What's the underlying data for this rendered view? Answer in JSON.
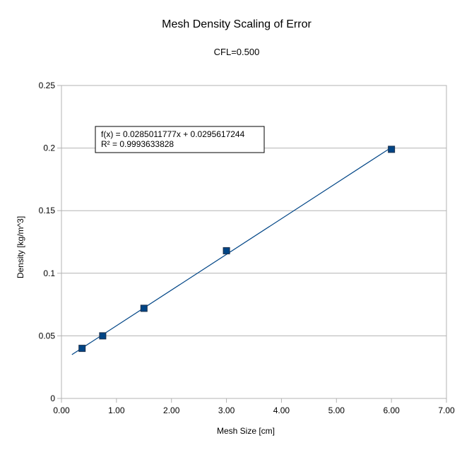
{
  "chart_data": {
    "type": "scatter",
    "title": "Mesh Density Scaling of Error",
    "subtitle": "CFL=0.500",
    "xlabel": "Mesh Size [cm]",
    "ylabel": "Density [kg/m^3]",
    "xlim": [
      0,
      7
    ],
    "ylim": [
      0,
      0.25
    ],
    "x_ticks": [
      "0.00",
      "1.00",
      "2.00",
      "3.00",
      "4.00",
      "5.00",
      "6.00",
      "7.00"
    ],
    "y_ticks": [
      "0",
      "0.05",
      "0.1",
      "0.15",
      "0.2",
      "0.25"
    ],
    "grid": "horizontal",
    "series": [
      {
        "x": [
          0.375,
          0.75,
          1.5,
          3.0,
          6.0
        ],
        "y": [
          0.04,
          0.05,
          0.072,
          0.118,
          0.199
        ],
        "color": "#004586"
      }
    ],
    "trendline": {
      "slope": 0.0285011777,
      "intercept": 0.0295617244,
      "x_range": [
        0.19,
        6.0
      ],
      "equation": "f(x) = 0.0285011777x + 0.0295617244",
      "r_squared": "R² = 0.9993633828"
    }
  }
}
